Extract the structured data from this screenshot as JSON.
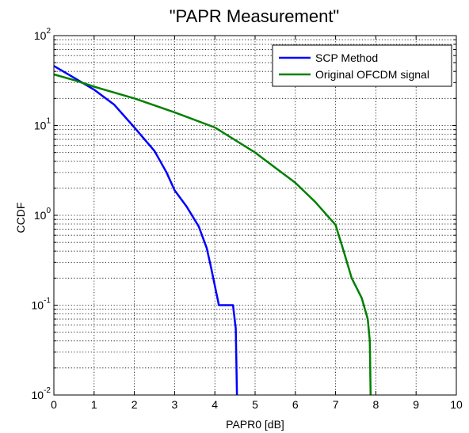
{
  "chart_data": {
    "type": "line",
    "title": "\"PAPR Measurement\"",
    "xlabel": "PAPR0 [dB]",
    "ylabel": "CCDF",
    "xlim": [
      0,
      10
    ],
    "ylim": [
      0.01,
      100
    ],
    "y_scale": "log",
    "grid": true,
    "legend_position": "top-right",
    "x_ticks": [
      "0",
      "1",
      "2",
      "3",
      "4",
      "5",
      "6",
      "7",
      "8",
      "9",
      "10"
    ],
    "y_ticks": [
      {
        "base": "10",
        "exp": "-2"
      },
      {
        "base": "10",
        "exp": "-1"
      },
      {
        "base": "10",
        "exp": "0"
      },
      {
        "base": "10",
        "exp": "1"
      },
      {
        "base": "10",
        "exp": "2"
      }
    ],
    "series": [
      {
        "name": "SCP Method",
        "color": "#0000ff",
        "points": [
          [
            0,
            46
          ],
          [
            0.5,
            34
          ],
          [
            1.0,
            25
          ],
          [
            1.5,
            17
          ],
          [
            2.0,
            9.5
          ],
          [
            2.5,
            5.2
          ],
          [
            2.8,
            3.0
          ],
          [
            3.0,
            1.9
          ],
          [
            3.3,
            1.25
          ],
          [
            3.6,
            0.75
          ],
          [
            3.8,
            0.43
          ],
          [
            3.9,
            0.27
          ],
          [
            4.1,
            0.1
          ],
          [
            4.45,
            0.1
          ],
          [
            4.52,
            0.055
          ],
          [
            4.55,
            0.01
          ]
        ]
      },
      {
        "name": "Original OFCDM signal",
        "color": "#008000",
        "points": [
          [
            0,
            37
          ],
          [
            0.5,
            32
          ],
          [
            1.0,
            27
          ],
          [
            2.0,
            20
          ],
          [
            3.0,
            14
          ],
          [
            4.0,
            9.5
          ],
          [
            5.0,
            5.0
          ],
          [
            6.0,
            2.3
          ],
          [
            6.5,
            1.4
          ],
          [
            7.0,
            0.78
          ],
          [
            7.2,
            0.4
          ],
          [
            7.4,
            0.2
          ],
          [
            7.65,
            0.12
          ],
          [
            7.8,
            0.07
          ],
          [
            7.85,
            0.04
          ],
          [
            7.87,
            0.01
          ]
        ]
      }
    ]
  }
}
